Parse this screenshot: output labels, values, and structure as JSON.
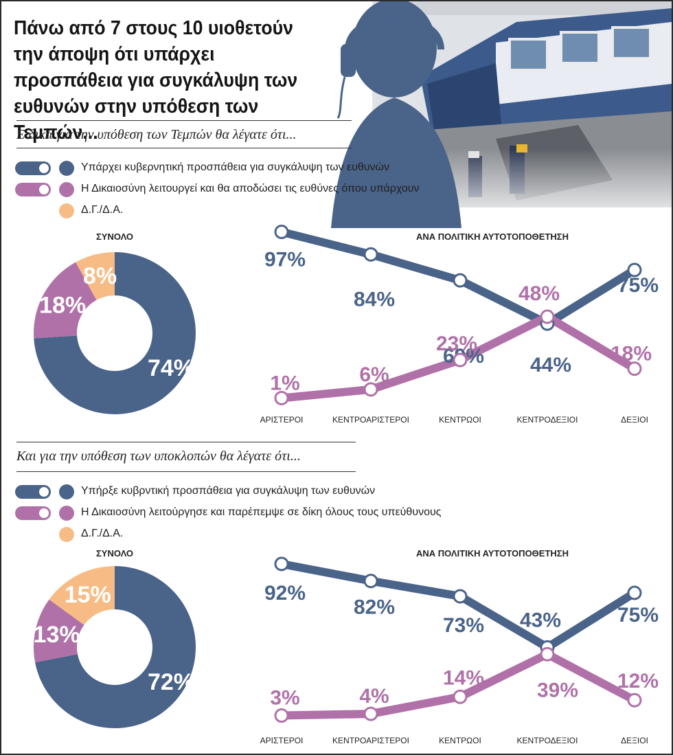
{
  "title": "Πάνω από 7 στους 10 υιοθετούν την άποψη ότι υπάρχει προσπάθεια για συγκάλυψη των ευθυνών στην υπόθεση των Τεμπών...",
  "colors": {
    "blue": "#4a6389",
    "pink": "#b071a8",
    "peach": "#f7bc85"
  },
  "sections": [
    {
      "question": "Ειδικά για την υπόθεση των Τεμπών θα λέγατε ότι...",
      "legend": [
        "Υπάρχει κυβερνητική προσπάθεια για συγκάλυψη των ευθυνών",
        "Η Δικαιοσύνη λειτουργεί και θα αποδώσει τις ευθύνες όπου υπάρχουν",
        "Δ.Γ./Δ.Α."
      ],
      "donut_title": "ΣΥΝΟΛΟ",
      "line_title": "ΑΝΑ ΠΟΛΙΤΙΚΗ ΑΥΤΟΤΟΠΟΘΕΤΗΣΗ"
    },
    {
      "question": "Και για την υπόθεση των υποκλοπών θα λέγατε ότι...",
      "legend": [
        "Υπήρξε κυβρντική προσπάθεια για συγκάλυψη των ευθυνών",
        "Η Δικαιοσύνη λειτούργησε και παρέπεμψε σε δίκη όλους τους υπεύθυνους",
        "Δ.Γ./Δ.Α."
      ],
      "donut_title": "ΣΥΝΟΛΟ",
      "line_title": "ΑΝΑ ΠΟΛΙΤΙΚΗ ΑΥΤΟΤΟΠΟΘΕΤΗΣΗ"
    }
  ],
  "chart_data": [
    {
      "type": "pie",
      "title": "ΣΥΝΟΛΟ",
      "categories": [
        "Υπάρχει κυβερνητική προσπάθεια για συγκάλυψη των ευθυνών",
        "Η Δικαιοσύνη λειτουργεί και θα αποδώσει τις ευθύνες όπου υπάρχουν",
        "Δ.Γ./Δ.Α."
      ],
      "values": [
        74,
        18,
        8
      ],
      "labels": [
        "74%",
        "18%",
        "8%"
      ]
    },
    {
      "type": "line",
      "title": "ΑΝΑ ΠΟΛΙΤΙΚΗ ΑΥΤΟΤΟΠΟΘΕΤΗΣΗ",
      "categories": [
        "ΑΡΙΣΤΕΡΟΙ",
        "ΚΕΝΤΡΟΑΡΙΣΤΕΡΟΙ",
        "ΚΕΝΤΡΩΟΙ",
        "ΚΕΝΤΡΟΔΕΞΙΟΙ",
        "ΔΕΞΙΟΙ"
      ],
      "series": [
        {
          "name": "Υπάρχει κυβερνητική προσπάθεια για συγκάλυψη των ευθυνών",
          "values": [
            97,
            84,
            69,
            44,
            75
          ],
          "labels": [
            "97%",
            "84%",
            "69%",
            "44%",
            "75%"
          ]
        },
        {
          "name": "Η Δικαιοσύνη λειτουργεί και θα αποδώσει τις ευθύνες όπου υπάρχουν",
          "values": [
            1,
            6,
            23,
            48,
            18
          ],
          "labels": [
            "1%",
            "6%",
            "23%",
            "48%",
            "18%"
          ]
        }
      ]
    },
    {
      "type": "pie",
      "title": "ΣΥΝΟΛΟ",
      "categories": [
        "Υπήρξε κυβρντική προσπάθεια για συγκάλυψη των ευθυνών",
        "Η Δικαιοσύνη λειτούργησε και παρέπεμψε σε δίκη όλους τους υπεύθυνους",
        "Δ.Γ./Δ.Α."
      ],
      "values": [
        72,
        13,
        15
      ],
      "labels": [
        "72%",
        "13%",
        "15%"
      ]
    },
    {
      "type": "line",
      "title": "ΑΝΑ ΠΟΛΙΤΙΚΗ ΑΥΤΟΤΟΠΟΘΕΤΗΣΗ",
      "categories": [
        "ΑΡΙΣΤΕΡΟΙ",
        "ΚΕΝΤΡΟΑΡΙΣΤΕΡΟΙ",
        "ΚΕΝΤΡΩΟΙ",
        "ΚΕΝΤΡΟΔΕΞΙΟΙ",
        "ΔΕΞΙΟΙ"
      ],
      "series": [
        {
          "name": "Υπήρξε κυβρντική προσπάθεια για συγκάλυψη των ευθυνών",
          "values": [
            92,
            82,
            73,
            43,
            75
          ],
          "labels": [
            "92%",
            "82%",
            "73%",
            "43%",
            "75%"
          ]
        },
        {
          "name": "Η Δικαιοσύνη λειτούργησε και παρέπεμψε σε δίκη όλους τους υπεύθυνους",
          "values": [
            3,
            4,
            14,
            39,
            12
          ],
          "labels": [
            "3%",
            "4%",
            "14%",
            "39%",
            "12%"
          ]
        }
      ]
    }
  ]
}
